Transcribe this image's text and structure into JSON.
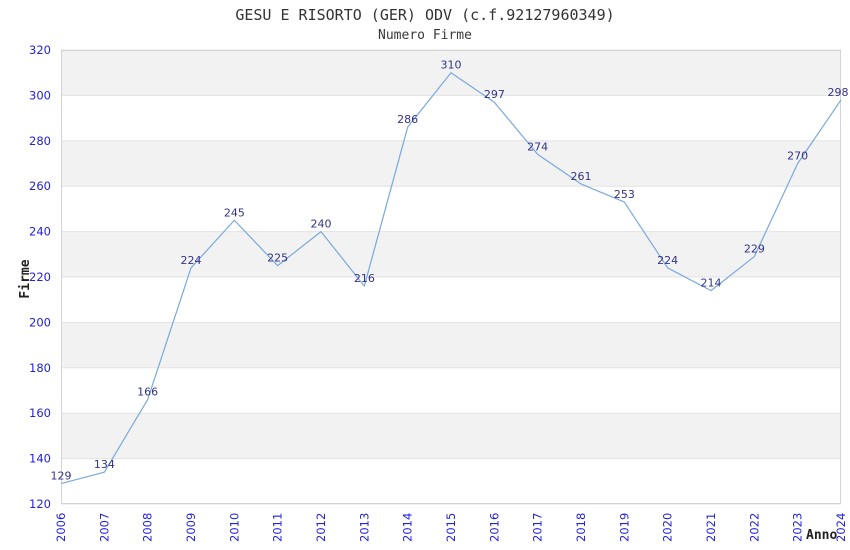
{
  "chart_data": {
    "type": "line",
    "title": "GESU E RISORTO (GER) ODV (c.f.92127960349)",
    "subtitle": "Numero Firme",
    "xlabel": "Anno",
    "ylabel": "Firme",
    "categories": [
      "2006",
      "2007",
      "2008",
      "2009",
      "2010",
      "2011",
      "2012",
      "2013",
      "2014",
      "2015",
      "2016",
      "2017",
      "2018",
      "2019",
      "2020",
      "2021",
      "2022",
      "2023",
      "2024"
    ],
    "series": [
      {
        "name": "Numero Firme",
        "values": [
          129,
          134,
          166,
          224,
          245,
          225,
          240,
          216,
          286,
          310,
          297,
          274,
          261,
          253,
          224,
          214,
          229,
          270,
          298
        ]
      }
    ],
    "ylim": [
      120,
      320
    ],
    "ytick_step": 20,
    "grid": "horizontal-alternating-bands",
    "legend": "none",
    "data_labels": true,
    "colors": {
      "line": "#79a9dc",
      "tick_label": "#2222dd",
      "data_label": "#333388",
      "band_gray": "#f2f2f2",
      "band_white": "#ffffff",
      "gridline": "#e3e3e3",
      "plot_border": "#d4d4d4",
      "title_text": "#333333",
      "axis_title_text": "#222222"
    }
  }
}
